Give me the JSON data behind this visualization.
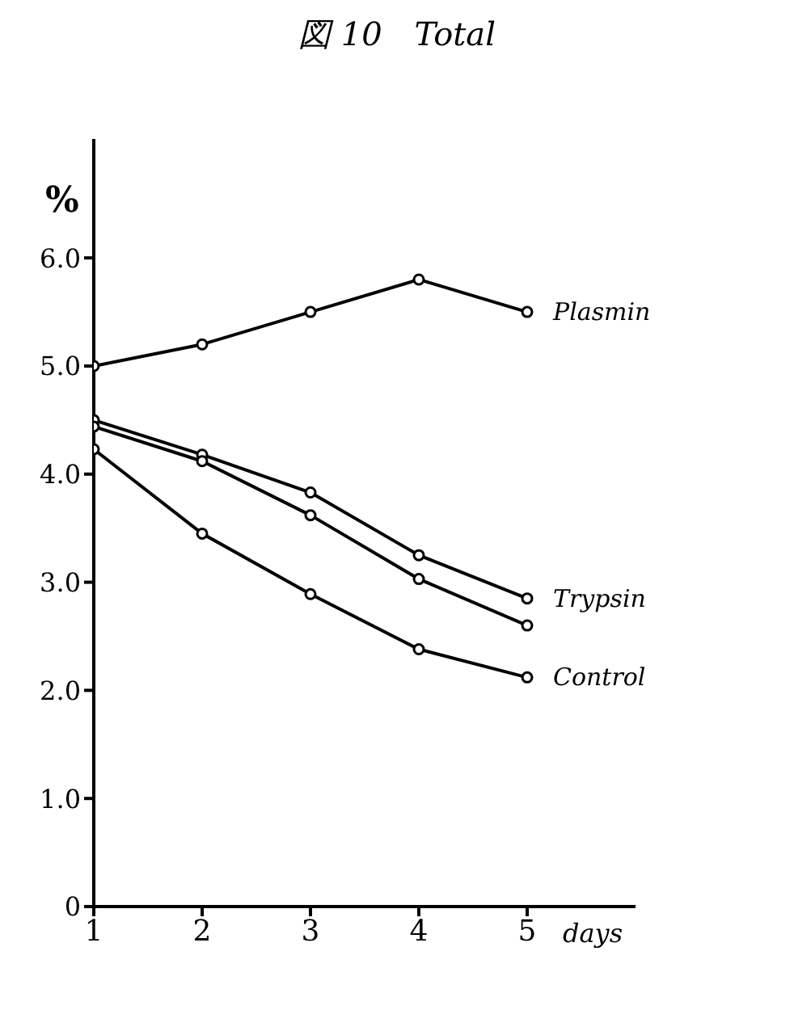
{
  "chart_data": {
    "type": "line",
    "title": "図 10　Total",
    "xlabel": "days",
    "ylabel": "%",
    "x": [
      1,
      2,
      3,
      4,
      5
    ],
    "series": [
      {
        "name": "Plasmin",
        "color": "#000000",
        "values": [
          5.0,
          5.2,
          5.5,
          5.8,
          5.5
        ]
      },
      {
        "name": "Trypsin",
        "color": "#000000",
        "values": [
          4.5,
          4.18,
          3.83,
          3.25,
          2.85
        ]
      },
      {
        "color": "#000000",
        "values": [
          4.44,
          4.12,
          3.62,
          3.03,
          2.6
        ]
      },
      {
        "name": "Control",
        "color": "#000000",
        "values": [
          4.23,
          3.45,
          2.89,
          2.38,
          2.12
        ]
      }
    ],
    "xlim": [
      1,
      6
    ],
    "xticks": [
      1,
      2,
      3,
      4,
      5
    ],
    "ylim": [
      0,
      7.1
    ],
    "yticks": [
      0,
      {
        "value": 1,
        "label": "1.0"
      },
      {
        "value": 2,
        "label": "2.0"
      },
      {
        "value": 3,
        "label": "3.0"
      },
      {
        "value": 4,
        "label": "4.0"
      },
      {
        "value": 5,
        "label": "5.0"
      },
      {
        "value": 6,
        "label": "6.0"
      }
    ],
    "grid": false,
    "legend": false,
    "marker": "circle",
    "line_style": "solid"
  }
}
